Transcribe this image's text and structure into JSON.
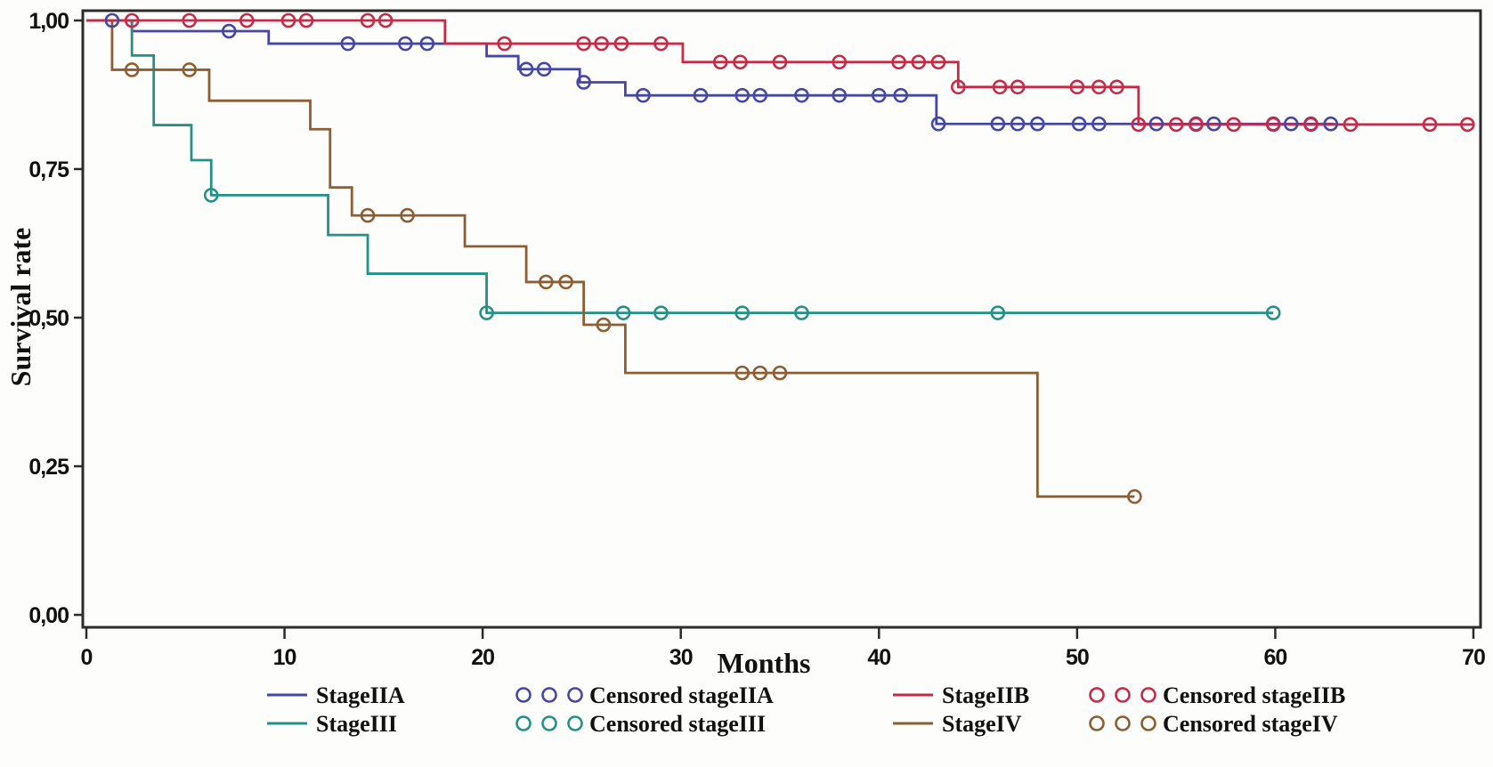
{
  "chart_data": {
    "type": "line",
    "subtype": "kaplan-meier-step",
    "title": "",
    "xlabel": "Months",
    "ylabel": "Survival rate",
    "xlim": [
      0,
      70
    ],
    "ylim": [
      0.0,
      1.0
    ],
    "grid": false,
    "xticks": [
      {
        "value": 0,
        "label": "0"
      },
      {
        "value": 10,
        "label": "10"
      },
      {
        "value": 20,
        "label": "20"
      },
      {
        "value": 30,
        "label": "30"
      },
      {
        "value": 40,
        "label": "40"
      },
      {
        "value": 50,
        "label": "50"
      },
      {
        "value": 60,
        "label": "60"
      },
      {
        "value": 70,
        "label": "70"
      }
    ],
    "yticks": [
      {
        "value": 1.0,
        "label": "1,00"
      },
      {
        "value": 0.75,
        "label": "0,75"
      },
      {
        "value": 0.5,
        "label": "0,50"
      },
      {
        "value": 0.25,
        "label": "0,25"
      },
      {
        "value": 0.0,
        "label": "0,00"
      }
    ],
    "colors": {
      "stageIIA": "#4646a3",
      "stageIIB": "#c52b48",
      "stageIII": "#259086",
      "stageIV": "#8b5e34",
      "axis": "#2b2b2b",
      "text": "#111111"
    },
    "series": [
      {
        "name": "StageIIA",
        "color_key": "stageIIA",
        "end_month": 63.0,
        "steps": [
          [
            0,
            1.0
          ],
          [
            2.3,
            0.982
          ],
          [
            9.2,
            0.961
          ],
          [
            20.2,
            0.94
          ],
          [
            21.8,
            0.918
          ],
          [
            24.9,
            0.896
          ],
          [
            27.2,
            0.874
          ],
          [
            42.9,
            0.826
          ]
        ],
        "censored": [
          [
            1.3,
            1.0
          ],
          [
            7.2,
            0.982
          ],
          [
            13.2,
            0.961
          ],
          [
            16.1,
            0.961
          ],
          [
            17.2,
            0.961
          ],
          [
            22.2,
            0.918
          ],
          [
            23.1,
            0.918
          ],
          [
            25.1,
            0.896
          ],
          [
            28.1,
            0.874
          ],
          [
            31.0,
            0.874
          ],
          [
            33.1,
            0.874
          ],
          [
            34.0,
            0.874
          ],
          [
            36.1,
            0.874
          ],
          [
            38.0,
            0.874
          ],
          [
            40.0,
            0.874
          ],
          [
            41.1,
            0.874
          ],
          [
            43.0,
            0.826
          ],
          [
            46.0,
            0.826
          ],
          [
            47.0,
            0.826
          ],
          [
            48.0,
            0.826
          ],
          [
            50.1,
            0.826
          ],
          [
            51.1,
            0.826
          ],
          [
            54.0,
            0.826
          ],
          [
            56.0,
            0.826
          ],
          [
            56.9,
            0.826
          ],
          [
            59.9,
            0.826
          ],
          [
            60.8,
            0.826
          ],
          [
            61.8,
            0.826
          ],
          [
            62.8,
            0.826
          ]
        ]
      },
      {
        "name": "StageIII",
        "color_key": "stageIII",
        "end_month": 59.9,
        "steps": [
          [
            0,
            1.0
          ],
          [
            2.3,
            0.941
          ],
          [
            3.4,
            0.824
          ],
          [
            5.3,
            0.765
          ],
          [
            6.3,
            0.706
          ],
          [
            12.2,
            0.639
          ],
          [
            14.2,
            0.574
          ],
          [
            20.2,
            0.508
          ]
        ],
        "censored": [
          [
            6.3,
            0.706
          ],
          [
            20.2,
            0.508
          ],
          [
            27.1,
            0.508
          ],
          [
            29.0,
            0.508
          ],
          [
            33.1,
            0.508
          ],
          [
            36.1,
            0.508
          ],
          [
            46.0,
            0.508
          ],
          [
            59.9,
            0.508
          ]
        ]
      },
      {
        "name": "StageIV",
        "color_key": "stageIV",
        "end_month": 52.9,
        "steps": [
          [
            0,
            1.0
          ],
          [
            1.3,
            0.917
          ],
          [
            6.2,
            0.865
          ],
          [
            11.3,
            0.817
          ],
          [
            12.3,
            0.719
          ],
          [
            13.4,
            0.672
          ],
          [
            19.1,
            0.62
          ],
          [
            22.2,
            0.56
          ],
          [
            25.1,
            0.488
          ],
          [
            27.2,
            0.407
          ],
          [
            48.0,
            0.199
          ]
        ],
        "censored": [
          [
            2.3,
            0.917
          ],
          [
            5.2,
            0.917
          ],
          [
            14.2,
            0.672
          ],
          [
            16.2,
            0.672
          ],
          [
            23.2,
            0.56
          ],
          [
            24.2,
            0.56
          ],
          [
            26.1,
            0.488
          ],
          [
            33.1,
            0.407
          ],
          [
            34.0,
            0.407
          ],
          [
            35.0,
            0.407
          ],
          [
            52.9,
            0.199
          ]
        ]
      },
      {
        "name": "StageIIB",
        "color_key": "stageIIB",
        "end_month": 70.0,
        "steps": [
          [
            0,
            1.0
          ],
          [
            18.1,
            0.961
          ],
          [
            30.1,
            0.93
          ],
          [
            44.0,
            0.888
          ],
          [
            53.1,
            0.825
          ]
        ],
        "censored": [
          [
            2.3,
            1.0
          ],
          [
            5.2,
            1.0
          ],
          [
            8.1,
            1.0
          ],
          [
            10.2,
            1.0
          ],
          [
            11.1,
            1.0
          ],
          [
            14.2,
            1.0
          ],
          [
            15.1,
            1.0
          ],
          [
            21.1,
            0.961
          ],
          [
            25.1,
            0.961
          ],
          [
            26.0,
            0.961
          ],
          [
            27.0,
            0.961
          ],
          [
            29.0,
            0.961
          ],
          [
            32.0,
            0.93
          ],
          [
            33.0,
            0.93
          ],
          [
            35.0,
            0.93
          ],
          [
            38.0,
            0.93
          ],
          [
            41.0,
            0.93
          ],
          [
            42.0,
            0.93
          ],
          [
            43.0,
            0.93
          ],
          [
            44.0,
            0.888
          ],
          [
            46.1,
            0.888
          ],
          [
            47.0,
            0.888
          ],
          [
            50.0,
            0.888
          ],
          [
            51.1,
            0.888
          ],
          [
            52.0,
            0.888
          ],
          [
            53.1,
            0.825
          ],
          [
            55.0,
            0.825
          ],
          [
            56.0,
            0.825
          ],
          [
            57.9,
            0.825
          ],
          [
            59.9,
            0.825
          ],
          [
            61.8,
            0.825
          ],
          [
            63.8,
            0.825
          ],
          [
            67.8,
            0.825
          ],
          [
            69.7,
            0.825
          ]
        ]
      }
    ],
    "legend": {
      "position": "bottom",
      "rows": 2,
      "columns": 4,
      "items": [
        {
          "label": "StageIIA",
          "type": "line",
          "color_key": "stageIIA"
        },
        {
          "label": "Censored stageIIA",
          "type": "markers",
          "color_key": "stageIIA"
        },
        {
          "label": "StageIIB",
          "type": "line",
          "color_key": "stageIIB"
        },
        {
          "label": "Censored stageIIB",
          "type": "markers",
          "color_key": "stageIIB"
        },
        {
          "label": "StageIII",
          "type": "line",
          "color_key": "stageIII"
        },
        {
          "label": "Censored stageIII",
          "type": "markers",
          "color_key": "stageIII"
        },
        {
          "label": "StageIV",
          "type": "line",
          "color_key": "stageIV"
        },
        {
          "label": "Censored stageIV",
          "type": "markers",
          "color_key": "stageIV"
        }
      ]
    }
  }
}
